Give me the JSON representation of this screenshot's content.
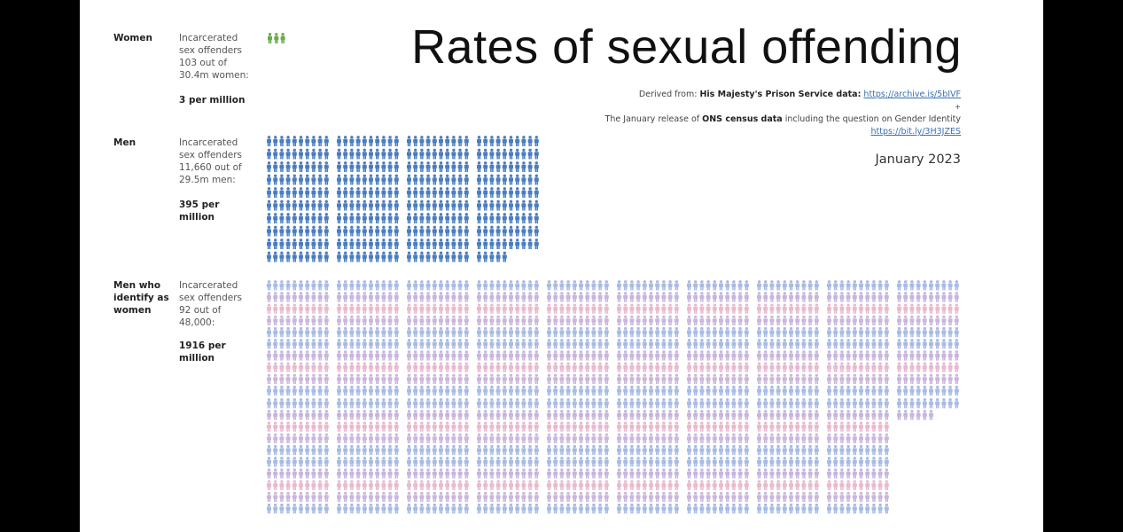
{
  "title": "Rates of sexual offending",
  "sources": {
    "prefix": "Derived from: ",
    "prison_label": "His Majesty's Prison Service data:",
    "prison_link": "https://archive.is/5bIVF",
    "plus": "+",
    "census_pre": "The January release of ",
    "census_bold": "ONS census data",
    "census_post": " including the question on Gender Identity",
    "census_link": "https://bit.ly/3H3JZES"
  },
  "date": "January 2023",
  "groups": [
    {
      "label": "Women",
      "description": "Incarcerated sex offenders 103 out of 30.4m women:",
      "rate": "3 per million",
      "color": "#6caa4c"
    },
    {
      "label": "Men",
      "description": "Incarcerated sex offenders 11,660 out of 29.5m men:",
      "rate": "395 per million",
      "color": "#4a7dc0"
    },
    {
      "label": "Men who identify as women",
      "description": "Incarcerated sex offenders 92 out of 48,000:",
      "rate": "1916 per million",
      "colors": [
        "#a9bbe3",
        "#c6b6dd",
        "#e9b9cd",
        "#c9b7dc",
        "#a6bbe6"
      ]
    }
  ],
  "chart_data": {
    "type": "bar",
    "title": "Rates of sexual offending",
    "categories": [
      "Women",
      "Men",
      "Men who identify as women"
    ],
    "values": [
      3,
      395,
      1916
    ],
    "unit": "per million"
  }
}
